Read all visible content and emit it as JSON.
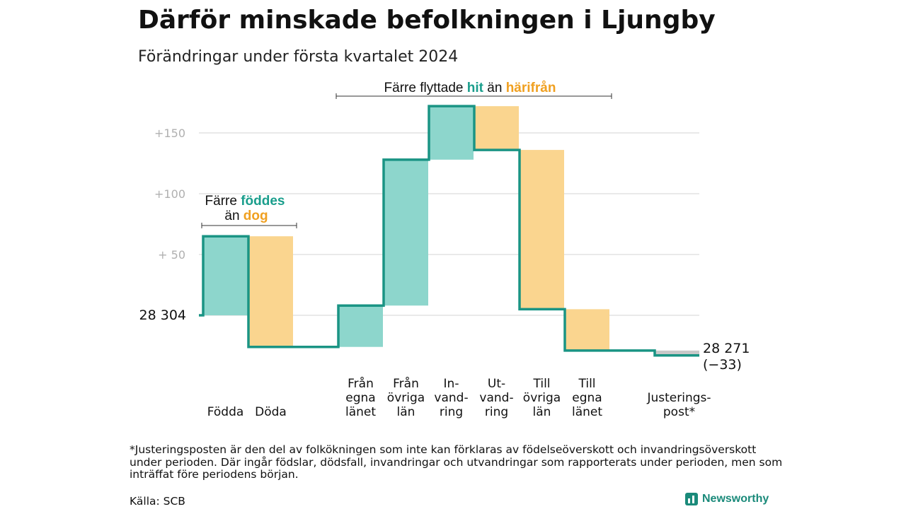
{
  "header": {
    "title": "Därför minskade befolkningen i Ljungby",
    "subtitle": "Förändringar under första kvartalet 2024"
  },
  "annotations": {
    "birth": {
      "line1_a": "Färre",
      "line1_b": "föddes",
      "line2_a": "än",
      "line2_b": "dog"
    },
    "migration": {
      "part1": "Färre flyttade",
      "part2": "hit",
      "part3": "än",
      "part4": "härifrån"
    }
  },
  "chart_data": {
    "type": "bar",
    "subtype": "waterfall",
    "start_value": 28304,
    "start_label": "28  304",
    "end_value": 28271,
    "end_label": "28 271",
    "end_change_label": "(−33)",
    "y_ticks": [
      {
        "value": 150,
        "label": "+150"
      },
      {
        "value": 100,
        "label": "+100"
      },
      {
        "value": 50,
        "label": "+  50"
      }
    ],
    "ylim": [
      -40,
      175
    ],
    "grid": true,
    "colors": {
      "increase": "#8dd6cc",
      "decrease": "#fad58f",
      "line": "#1a9484",
      "adjustment": "#c8c8c8"
    },
    "steps": [
      {
        "category": [
          "Födda"
        ],
        "value": 65,
        "kind": "increase"
      },
      {
        "category": [
          "Döda"
        ],
        "value": -91,
        "kind": "decrease"
      },
      {
        "category": [
          "Från",
          "egna",
          "länet"
        ],
        "value": 34,
        "kind": "increase"
      },
      {
        "category": [
          "Från",
          "övriga",
          "län"
        ],
        "value": 120,
        "kind": "increase"
      },
      {
        "category": [
          "In-",
          "vand-",
          "ring"
        ],
        "value": 44,
        "kind": "increase"
      },
      {
        "category": [
          "Ut-",
          "vand-",
          "ring"
        ],
        "value": -36,
        "kind": "decrease"
      },
      {
        "category": [
          "Till",
          "övriga",
          "län"
        ],
        "value": -131,
        "kind": "decrease"
      },
      {
        "category": [
          "Till",
          "egna",
          "länet"
        ],
        "value": -34,
        "kind": "decrease"
      },
      {
        "category": [
          "Justerings-",
          "post*"
        ],
        "value": -4,
        "kind": "adjustment"
      }
    ]
  },
  "footer": {
    "footnote": "*Justeringsposten är den del av folkökningen som inte kan förklaras av födelseöverskott och invandringsöverskott under perioden. Där ingår födslar, dödsfall, invandringar och utvandringar som rapporterats under perioden, men som inträffat före periodens början.",
    "source": "Källa: SCB",
    "brand": "Newsworthy"
  }
}
